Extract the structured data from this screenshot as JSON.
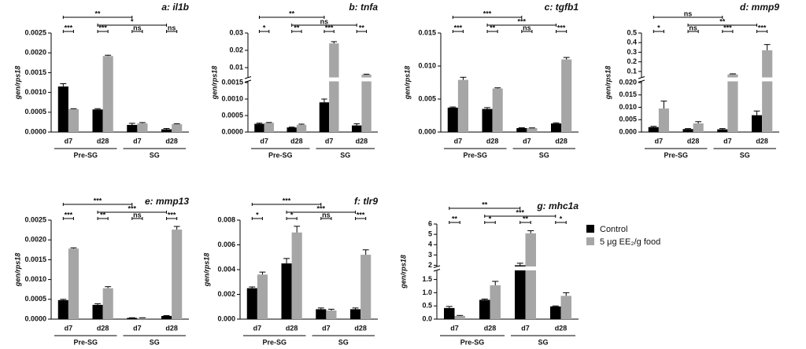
{
  "legend": [
    {
      "name": "Control",
      "color": "#000000"
    },
    {
      "name": "5 μg EE₂/g food",
      "color": "#a6a6a6"
    }
  ],
  "chart_data": [
    {
      "type": "bar",
      "title": "a: il1b",
      "ylabel": "gen/rps18",
      "categories": [
        "d7",
        "d28",
        "d7",
        "d28"
      ],
      "groups": [
        "Pre-SG",
        "SG"
      ],
      "ylim": [
        0,
        0.0025
      ],
      "yticks": [
        {
          "value": 0,
          "label": "0.0000"
        },
        {
          "value": 0.0005,
          "label": "0.0005"
        },
        {
          "value": 0.001,
          "label": "0.0010"
        },
        {
          "value": 0.0015,
          "label": "0.0015"
        },
        {
          "value": 0.002,
          "label": "0.0020"
        },
        {
          "value": 0.0025,
          "label": "0.0025"
        }
      ],
      "series": [
        {
          "values": [
            0.00115,
            0.00057,
            0.00018,
            7e-05
          ],
          "errors": [
            7e-05,
            2e-05,
            4e-05,
            2e-05
          ]
        },
        {
          "values": [
            0.00058,
            0.00192,
            0.00022,
            0.0002
          ],
          "errors": [
            1e-05,
            2e-05,
            2e-05,
            1e-05
          ]
        }
      ],
      "pair_significance": [
        "***",
        "***",
        "ns",
        "ns"
      ],
      "across_significance": [
        "**",
        "*"
      ]
    },
    {
      "type": "bar",
      "title": "b: tnfa",
      "ylabel": "gen/rps18",
      "categories": [
        "d7",
        "d28",
        "d7",
        "d28"
      ],
      "groups": [
        "Pre-SG",
        "SG"
      ],
      "ylim": [
        0,
        0.03
      ],
      "ybreak": [
        0.0015,
        0.005
      ],
      "yticks": [
        {
          "value": 0,
          "label": "0.0000"
        },
        0.0005,
        {
          "value": 0.001,
          "label": "0.0010"
        },
        0.0015,
        0.01,
        0.02,
        0.03
      ],
      "series": [
        {
          "values": [
            0.00025,
            0.00014,
            0.0009,
            0.0002
          ],
          "errors": [
            2e-05,
            1e-05,
            0.0001,
            5e-05
          ]
        },
        {
          "values": [
            0.00028,
            0.00022,
            0.024,
            0.006
          ],
          "errors": [
            1e-05,
            2e-05,
            0.001,
            0.0002
          ]
        }
      ],
      "pair_significance": [
        "*",
        "**",
        "***",
        "**"
      ],
      "across_significance": [
        "**",
        "ns"
      ]
    },
    {
      "type": "bar",
      "title": "c: tgfb1",
      "ylabel": "gen/rps18",
      "categories": [
        "d7",
        "d28",
        "d7",
        "d28"
      ],
      "groups": [
        "Pre-SG",
        "SG"
      ],
      "ylim": [
        0,
        0.015
      ],
      "yticks": [
        {
          "value": 0,
          "label": "0.000"
        },
        0.005,
        {
          "value": 0.01,
          "label": "0.010"
        },
        0.015
      ],
      "series": [
        {
          "values": [
            0.0037,
            0.0035,
            0.0006,
            0.0013
          ],
          "errors": [
            0.0001,
            0.0002,
            5e-05,
            0.0001
          ]
        },
        {
          "values": [
            0.0079,
            0.0066,
            0.0006,
            0.011
          ],
          "errors": [
            0.0004,
            0.0001,
            3e-05,
            0.0003
          ]
        }
      ],
      "pair_significance": [
        "***",
        "**",
        "ns",
        "***"
      ],
      "across_significance": [
        "***",
        "***"
      ]
    },
    {
      "type": "bar",
      "title": "d: mmp9",
      "ylabel": "gen/rps18",
      "categories": [
        "d7",
        "d28",
        "d7",
        "d28"
      ],
      "groups": [
        "Pre-SG",
        "SG"
      ],
      "ylim": [
        0,
        0.5
      ],
      "ybreak": [
        0.02,
        0.05
      ],
      "yticks": [
        {
          "value": 0,
          "label": "0.000"
        },
        0.005,
        {
          "value": 0.01,
          "label": "0.010"
        },
        0.015,
        {
          "value": 0.02,
          "label": "0.020"
        },
        0.1,
        0.2,
        0.3,
        0.4,
        0.5
      ],
      "series": [
        {
          "values": [
            0.002,
            0.0012,
            0.0011,
            0.0068
          ],
          "errors": [
            0.0003,
            0.0002,
            0.0003,
            0.0017
          ]
        },
        {
          "values": [
            0.0095,
            0.0035,
            0.07,
            0.32
          ],
          "errors": [
            0.003,
            0.0007,
            0.005,
            0.06
          ]
        }
      ],
      "pair_significance": [
        "*",
        "ns",
        "***",
        "***"
      ],
      "across_significance": [
        "ns",
        "**"
      ]
    },
    {
      "type": "bar",
      "title": "e: mmp13",
      "ylabel": "gen/rps18",
      "categories": [
        "d7",
        "d28",
        "d7",
        "d28"
      ],
      "groups": [
        "Pre-SG",
        "SG"
      ],
      "ylim": [
        0,
        0.0025
      ],
      "yticks": [
        {
          "value": 0,
          "label": "0.0000"
        },
        0.0005,
        {
          "value": 0.001,
          "label": "0.0010"
        },
        0.0015,
        {
          "value": 0.002,
          "label": "0.0020"
        },
        0.0025
      ],
      "series": [
        {
          "values": [
            0.00048,
            0.00036,
            3e-05,
            8e-05
          ],
          "errors": [
            2e-05,
            3e-05,
            5e-06,
            1e-05
          ]
        },
        {
          "values": [
            0.00178,
            0.00078,
            3e-05,
            0.00226
          ],
          "errors": [
            2e-05,
            4e-05,
            5e-06,
            8e-05
          ]
        }
      ],
      "pair_significance": [
        "***",
        "**",
        "ns",
        "***"
      ],
      "across_significance": [
        "***",
        "***"
      ]
    },
    {
      "type": "bar",
      "title": "f: tlr9",
      "ylabel": "gen/rps18",
      "categories": [
        "d7",
        "d28",
        "d7",
        "d28"
      ],
      "groups": [
        "Pre-SG",
        "SG"
      ],
      "ylim": [
        0,
        0.008
      ],
      "yticks": [
        {
          "value": 0,
          "label": "0.000"
        },
        0.002,
        0.004,
        0.006,
        0.008
      ],
      "series": [
        {
          "values": [
            0.0025,
            0.0045,
            0.0008,
            0.0008
          ],
          "errors": [
            0.0001,
            0.0004,
            0.0001,
            0.0001
          ]
        },
        {
          "values": [
            0.0036,
            0.007,
            0.0007,
            0.0052
          ],
          "errors": [
            0.0002,
            0.0005,
            0.0001,
            0.0004
          ]
        }
      ],
      "pair_significance": [
        "*",
        "*",
        "ns",
        "***"
      ],
      "across_significance": [
        "***",
        "***"
      ]
    },
    {
      "type": "bar",
      "title": "g: mhc1a",
      "ylabel": "gen/rps18",
      "categories": [
        "d7",
        "d28",
        "d7",
        "d28"
      ],
      "groups": [
        "Pre-SG",
        "SG"
      ],
      "ylim": [
        0,
        6
      ],
      "ybreak": [
        1.8,
        2
      ],
      "yticks": [
        {
          "value": 0,
          "label": "0.0"
        },
        0.5,
        {
          "value": 1,
          "label": "1.0"
        },
        1.5,
        2,
        3,
        4,
        5,
        6
      ],
      "series": [
        {
          "values": [
            0.42,
            0.73,
            2.0,
            0.48
          ],
          "errors": [
            0.06,
            0.03,
            0.2,
            0.02
          ]
        },
        {
          "values": [
            0.12,
            1.28,
            5.1,
            0.88
          ],
          "errors": [
            0.02,
            0.15,
            0.25,
            0.12
          ]
        }
      ],
      "pair_significance": [
        "**",
        "*",
        "**",
        "*"
      ],
      "across_significance": [
        "**",
        "***"
      ]
    }
  ]
}
